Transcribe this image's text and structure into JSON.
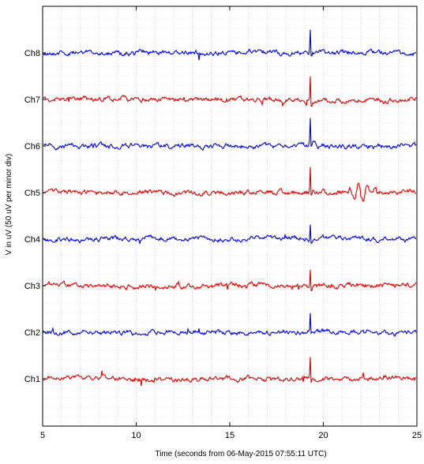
{
  "chart_data": {
    "type": "line",
    "title": "",
    "xlabel": "Time    (seconds from 06-May-2015 07:55:11 UTC)",
    "ylabel": "V in uV (50 uV per minor div)",
    "xlim": [
      5,
      25
    ],
    "xticks": [
      5,
      10,
      15,
      20,
      25
    ],
    "y_minor_div_uV": 50,
    "grid": "dotted",
    "channels": [
      {
        "name": "Ch8",
        "color": "#0000dd"
      },
      {
        "name": "Ch7",
        "color": "#dd0000"
      },
      {
        "name": "Ch6",
        "color": "#0000dd"
      },
      {
        "name": "Ch5",
        "color": "#dd0000"
      },
      {
        "name": "Ch4",
        "color": "#0000dd"
      },
      {
        "name": "Ch3",
        "color": "#dd0000"
      },
      {
        "name": "Ch2",
        "color": "#0000dd"
      },
      {
        "name": "Ch1",
        "color": "#dd0000"
      }
    ],
    "events": [
      {
        "x": 19.3,
        "spike_uV": [
          150,
          140,
          135,
          140,
          90,
          95,
          100,
          115
        ]
      },
      {
        "x": 22.0,
        "channel": "Ch5",
        "oscillation_uV": 45
      }
    ]
  }
}
